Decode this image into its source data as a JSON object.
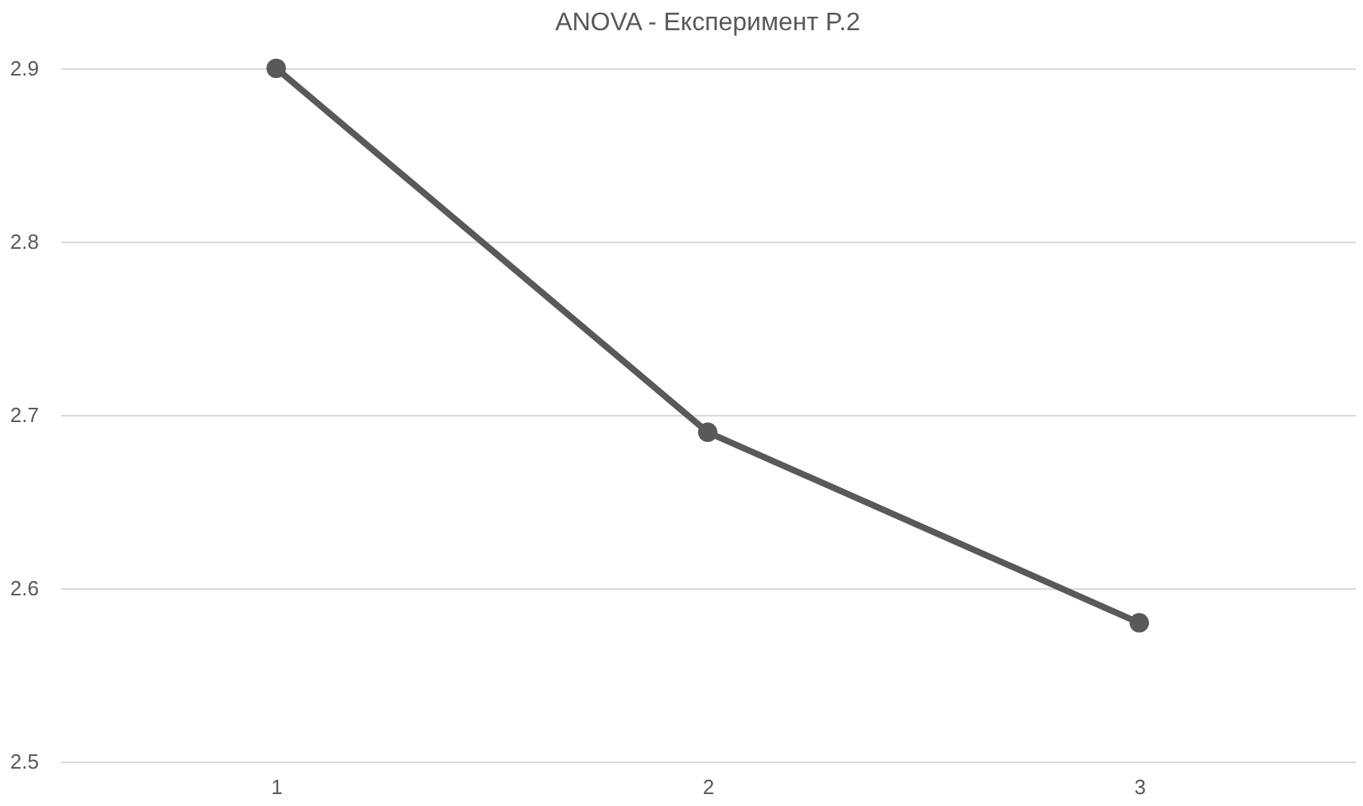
{
  "chart_data": {
    "type": "line",
    "title": "ANOVA - Експеримент P.2",
    "categories": [
      "1",
      "2",
      "3"
    ],
    "series": [
      {
        "color": "#595959",
        "values": [
          2.9,
          2.69,
          2.58
        ]
      }
    ],
    "ylim": [
      2.5,
      2.9
    ],
    "yticks": [
      2.5,
      2.6,
      2.7,
      2.8,
      2.9
    ],
    "grid": "y",
    "marker": "circle",
    "line_style": "solid"
  }
}
